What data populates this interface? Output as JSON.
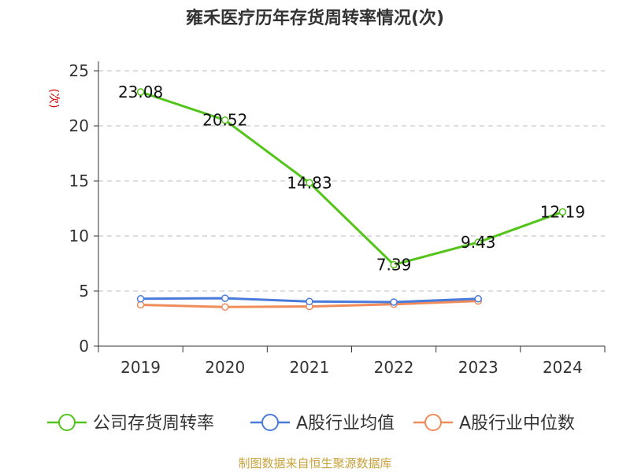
{
  "colors": {
    "series_company": "#52c41a",
    "series_avg": "#4a7bdb",
    "series_median": "#f08c5a",
    "axis": "#333333",
    "grid": "#bdbdbd",
    "ylabel": "#cc0000",
    "title": "#333333",
    "source": "#c8a23c"
  },
  "chart_data": {
    "type": "line",
    "title": "雍禾医疗历年存货周转率情况(次)",
    "ylabel": "(次)",
    "xlabel": "",
    "categories": [
      "2019",
      "2020",
      "2021",
      "2022",
      "2023",
      "2024"
    ],
    "ylim": [
      0,
      25
    ],
    "yticks": [
      0,
      5,
      10,
      15,
      20,
      25
    ],
    "grid": "horizontal-dashed",
    "legend_position": "bottom",
    "series": [
      {
        "name": "公司存货周转率",
        "values": [
          23.08,
          20.52,
          14.83,
          7.39,
          9.43,
          12.19
        ],
        "labels": [
          "23.08",
          "20.52",
          "14.83",
          "7.39",
          "9.43",
          "12.19"
        ]
      },
      {
        "name": "A股行业均值",
        "values": [
          4.3,
          4.35,
          4.05,
          4.0,
          4.3,
          null
        ]
      },
      {
        "name": "A股行业中位数",
        "values": [
          3.75,
          3.55,
          3.6,
          3.8,
          4.1,
          null
        ]
      }
    ]
  },
  "footer": {
    "source": "制图数据来自恒生聚源数据库"
  }
}
